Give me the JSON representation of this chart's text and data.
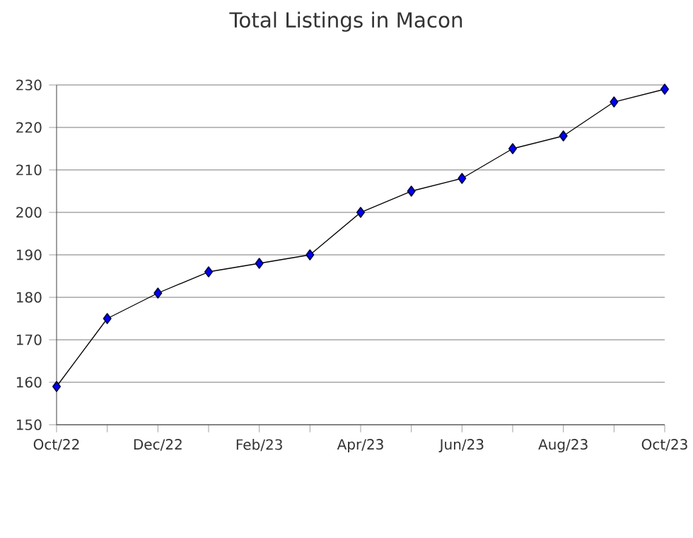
{
  "chart_data": {
    "type": "line",
    "title": "Total Listings in Macon",
    "categories": [
      "Oct/22",
      null,
      "Dec/22",
      null,
      "Feb/23",
      null,
      "Apr/23",
      null,
      "Jun/23",
      null,
      "Aug/23",
      null,
      "Oct/23"
    ],
    "series": [
      {
        "color": "#0000ff",
        "values": [
          159,
          175,
          181,
          186,
          188,
          190,
          200,
          205,
          208,
          215,
          218,
          226,
          229
        ]
      }
    ],
    "ylim": [
      150,
      230
    ],
    "yticks": [
      150,
      160,
      170,
      180,
      190,
      200,
      210,
      220,
      230
    ],
    "grid": "y",
    "marker": "diamond",
    "line_style": "solid"
  }
}
